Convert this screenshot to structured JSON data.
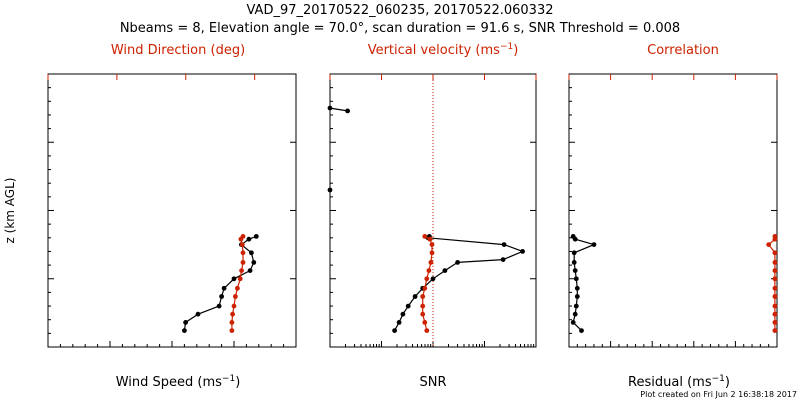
{
  "header": {
    "title": "VAD_97_20170522_060235, 20170522.060332",
    "subtitle": "Nbeams = 8, Elevation angle = 70.0°, scan duration = 91.6 s, SNR Threshold = 0.008"
  },
  "footer": {
    "credit": "Plot created on Fri Jun  2 16:38:18 2017"
  },
  "colors": {
    "black": "#000000",
    "red": "#cc2200",
    "guide": "#cc2200"
  },
  "chart_data": [
    {
      "type": "line",
      "panel": "wind",
      "ylabel": "z (km AGL)",
      "ylim": [
        0,
        2
      ],
      "yticks": [
        "0.0",
        "0.5",
        "1.0",
        "1.5",
        "2.0"
      ],
      "xlabel_bottom": "Wind Speed (ms",
      "xlabel_bottom_sup": "−1",
      "xlabel_bottom_end": ")",
      "xlim_bottom": [
        0,
        20
      ],
      "xticks_bottom": [
        "0",
        "5",
        "10",
        "15",
        "20"
      ],
      "xlabel_top": "Wind Direction (deg)",
      "xlim_top": [
        0,
        360
      ],
      "xticks_top": [
        "0",
        "100",
        "200",
        "300"
      ],
      "series": [
        {
          "name": "Wind Speed",
          "color": "black",
          "axis": "bottom",
          "points": [
            [
              11.0,
              0.12
            ],
            [
              11.1,
              0.18
            ],
            [
              12.1,
              0.24
            ],
            [
              13.8,
              0.3
            ],
            [
              14.0,
              0.37
            ],
            [
              14.2,
              0.43
            ],
            [
              15.0,
              0.5
            ],
            [
              16.3,
              0.56
            ],
            [
              16.6,
              0.62
            ],
            [
              16.4,
              0.69
            ],
            [
              15.6,
              0.75
            ],
            [
              16.2,
              0.79
            ],
            [
              16.8,
              0.81
            ]
          ]
        },
        {
          "name": "Wind Direction",
          "color": "red",
          "axis": "top",
          "points": [
            [
              267,
              0.12
            ],
            [
              267,
              0.18
            ],
            [
              268,
              0.24
            ],
            [
              270,
              0.3
            ],
            [
              272,
              0.37
            ],
            [
              275,
              0.43
            ],
            [
              279,
              0.5
            ],
            [
              281,
              0.56
            ],
            [
              283,
              0.62
            ],
            [
              283,
              0.69
            ],
            [
              282,
              0.75
            ],
            [
              280,
              0.79
            ],
            [
              283,
              0.81
            ]
          ]
        }
      ]
    },
    {
      "type": "line",
      "panel": "snr",
      "ylim": [
        0,
        2
      ],
      "xlabel_bottom": "SNR",
      "xscale": "log",
      "xlim_bottom": [
        0.001,
        10
      ],
      "xticks_bottom": [
        "0.001",
        "0.010",
        "0.100",
        "1.000",
        "10.000"
      ],
      "xlabel_top": "Vertical velocity (ms",
      "xlabel_top_sup": "−1",
      "xlabel_top_end": ")",
      "xlim_top": [
        -10,
        10
      ],
      "xticks_top": [
        "−10",
        "−5",
        "0",
        "5",
        "10"
      ],
      "guide": "dotted line at vertical velocity = 0",
      "series": [
        {
          "name": "SNR (upper layer)",
          "color": "black",
          "axis": "bottom",
          "points": [
            [
              0.001,
              1.75
            ],
            [
              0.0022,
              1.73
            ]
          ]
        },
        {
          "name": "SNR (isolated)",
          "color": "black",
          "axis": "bottom",
          "points": [
            [
              0.001,
              1.15
            ]
          ]
        },
        {
          "name": "SNR",
          "color": "black",
          "axis": "bottom",
          "points": [
            [
              0.018,
              0.12
            ],
            [
              0.022,
              0.18
            ],
            [
              0.026,
              0.24
            ],
            [
              0.033,
              0.3
            ],
            [
              0.045,
              0.37
            ],
            [
              0.063,
              0.43
            ],
            [
              0.1,
              0.5
            ],
            [
              0.17,
              0.56
            ],
            [
              0.3,
              0.62
            ],
            [
              2.3,
              0.64
            ],
            [
              5.5,
              0.7
            ],
            [
              2.4,
              0.75
            ],
            [
              0.08,
              0.8
            ],
            [
              0.085,
              0.81
            ]
          ]
        },
        {
          "name": "Vertical velocity",
          "color": "red",
          "axis": "top",
          "points": [
            [
              -0.6,
              0.12
            ],
            [
              -0.8,
              0.18
            ],
            [
              -1.0,
              0.24
            ],
            [
              -1.0,
              0.3
            ],
            [
              -1.0,
              0.37
            ],
            [
              -0.8,
              0.43
            ],
            [
              -0.6,
              0.5
            ],
            [
              -0.4,
              0.56
            ],
            [
              -0.2,
              0.62
            ],
            [
              -0.1,
              0.69
            ],
            [
              -0.1,
              0.75
            ],
            [
              -0.3,
              0.79
            ],
            [
              -0.8,
              0.81
            ]
          ]
        }
      ]
    },
    {
      "type": "line",
      "panel": "residual",
      "ylim": [
        0,
        2
      ],
      "xlabel_bottom": "Residual (ms",
      "xlabel_bottom_sup": "−1",
      "xlabel_bottom_end": ")",
      "xlim_bottom": [
        0,
        10
      ],
      "xticks_bottom": [
        "0",
        "2",
        "4",
        "6",
        "8",
        "10"
      ],
      "xlabel_top": "Correlation",
      "xlim_top": [
        0,
        1
      ],
      "xticks_top": [
        "0.0",
        "0.2",
        "0.4",
        "0.6",
        "0.8",
        "1.0"
      ],
      "series": [
        {
          "name": "Residual",
          "color": "black",
          "axis": "bottom",
          "points": [
            [
              0.6,
              0.12
            ],
            [
              0.2,
              0.18
            ],
            [
              0.3,
              0.24
            ],
            [
              0.35,
              0.3
            ],
            [
              0.4,
              0.37
            ],
            [
              0.4,
              0.43
            ],
            [
              0.35,
              0.5
            ],
            [
              0.3,
              0.56
            ],
            [
              0.25,
              0.62
            ],
            [
              0.25,
              0.69
            ],
            [
              1.2,
              0.75
            ],
            [
              0.3,
              0.79
            ],
            [
              0.2,
              0.81
            ]
          ]
        },
        {
          "name": "Correlation",
          "color": "red",
          "axis": "top",
          "points": [
            [
              0.99,
              0.12
            ],
            [
              0.99,
              0.18
            ],
            [
              0.99,
              0.24
            ],
            [
              0.99,
              0.3
            ],
            [
              0.99,
              0.37
            ],
            [
              0.99,
              0.43
            ],
            [
              0.99,
              0.5
            ],
            [
              0.99,
              0.56
            ],
            [
              0.99,
              0.62
            ],
            [
              0.99,
              0.69
            ],
            [
              0.96,
              0.75
            ],
            [
              0.99,
              0.79
            ],
            [
              0.99,
              0.81
            ]
          ]
        }
      ]
    }
  ]
}
